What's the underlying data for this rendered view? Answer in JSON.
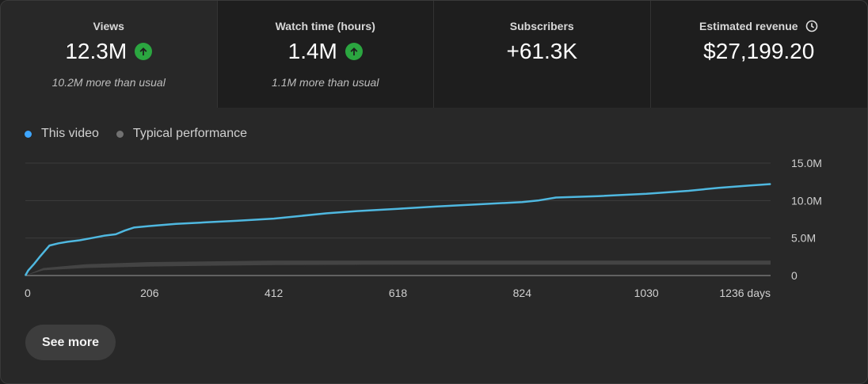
{
  "metrics": [
    {
      "label": "Views",
      "value": "12.3M",
      "note": "10.2M more than usual",
      "icon": "arrow-up-icon"
    },
    {
      "label": "Watch time (hours)",
      "value": "1.4M",
      "note": "1.1M more than usual",
      "icon": "arrow-up-icon"
    },
    {
      "label": "Subscribers",
      "value": "+61.3K",
      "note": "",
      "icon": ""
    },
    {
      "label": "Estimated revenue",
      "value": "$27,199.20",
      "note": "",
      "icon": "clock-icon"
    }
  ],
  "legend": [
    {
      "name": "This video",
      "color": "#3ea6ff"
    },
    {
      "name": "Typical performance",
      "color": "#717171"
    }
  ],
  "see_more_label": "See more",
  "colors": {
    "this_video": "#4fb8e0",
    "typical": "#444444",
    "up_badge": "#2ba640"
  },
  "chart_data": {
    "type": "line",
    "x_ticks": [
      "0",
      "206",
      "412",
      "618",
      "824",
      "1030",
      "1236 days"
    ],
    "x_tick_values": [
      0,
      206,
      412,
      618,
      824,
      1030,
      1236
    ],
    "y_ticks": [
      "15.0M",
      "10.0M",
      "5.0M",
      "0"
    ],
    "y_tick_values": [
      15,
      10,
      5,
      0
    ],
    "ylim": [
      0,
      15
    ],
    "xlim": [
      0,
      1236
    ],
    "units": "millions of views",
    "series": [
      {
        "name": "This video",
        "x": [
          0,
          5,
          15,
          25,
          40,
          55,
          70,
          90,
          110,
          130,
          150,
          165,
          180,
          206,
          250,
          300,
          350,
          412,
          450,
          500,
          550,
          618,
          680,
          750,
          824,
          850,
          880,
          950,
          1030,
          1100,
          1150,
          1200,
          1236
        ],
        "y": [
          0,
          0.7,
          1.6,
          2.6,
          4.0,
          4.3,
          4.5,
          4.7,
          5.0,
          5.3,
          5.5,
          6.0,
          6.4,
          6.6,
          6.9,
          7.1,
          7.3,
          7.6,
          7.9,
          8.3,
          8.6,
          8.9,
          9.2,
          9.5,
          9.8,
          10.0,
          10.4,
          10.6,
          10.9,
          11.3,
          11.7,
          12.0,
          12.2
        ]
      },
      {
        "name": "Typical performance",
        "band": true,
        "x": [
          0,
          30,
          100,
          206,
          412,
          618,
          824,
          1030,
          1236
        ],
        "low": [
          0,
          0.7,
          1.0,
          1.2,
          1.4,
          1.45,
          1.45,
          1.45,
          1.45
        ],
        "high": [
          0,
          1.0,
          1.5,
          1.8,
          2.0,
          2.0,
          2.0,
          2.0,
          2.0
        ]
      }
    ],
    "grid": true,
    "legend_position": "top-left"
  }
}
